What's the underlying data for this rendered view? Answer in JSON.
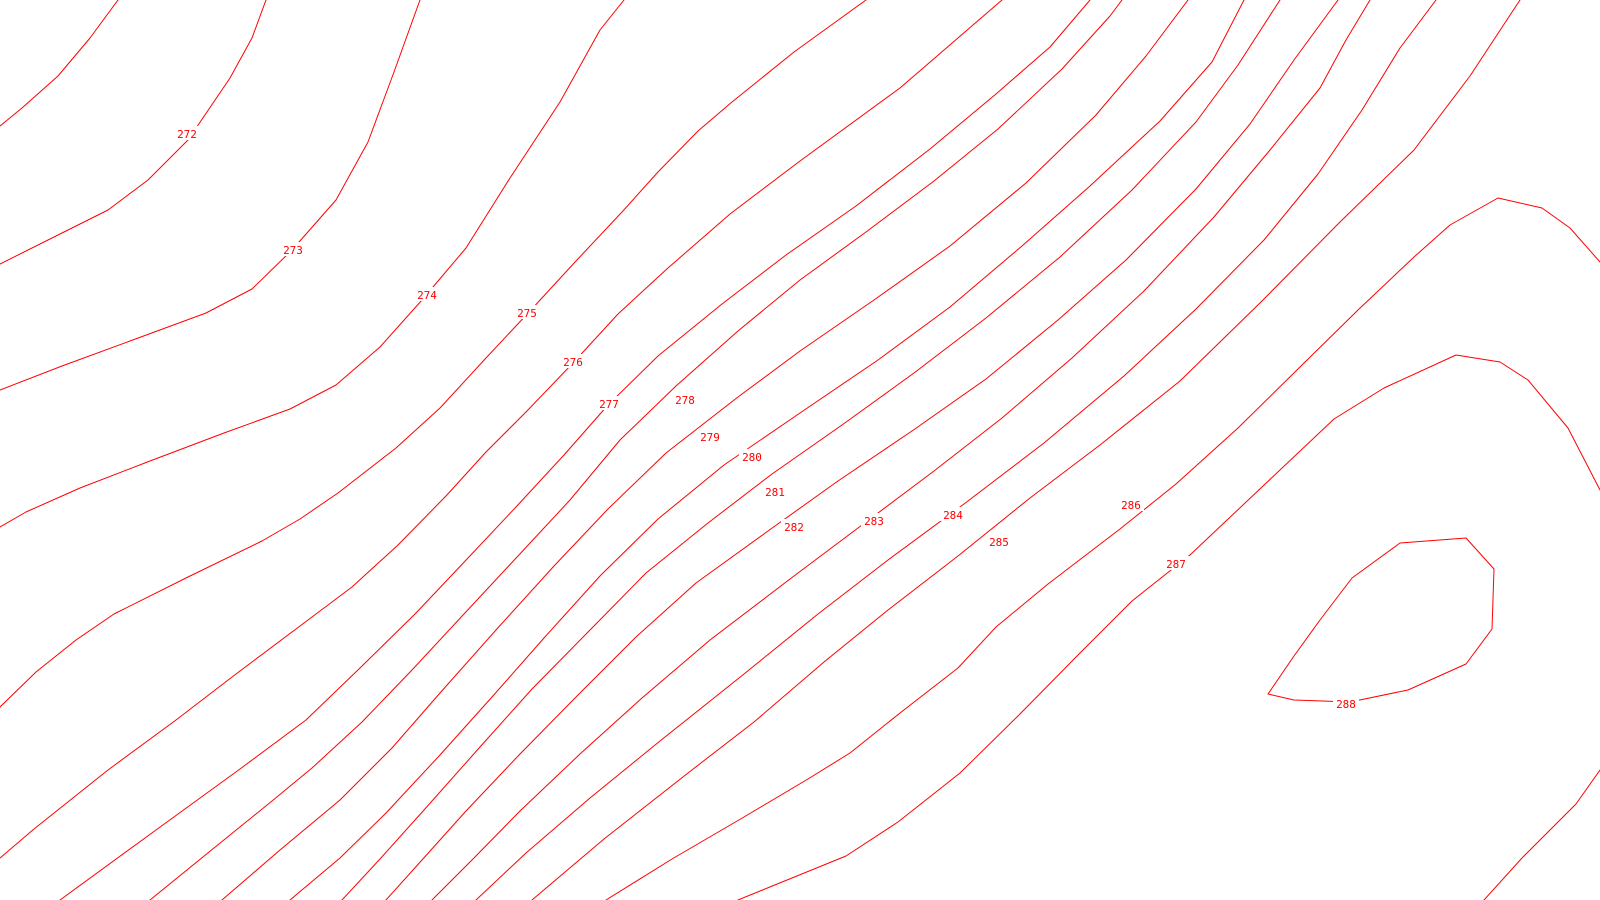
{
  "map": {
    "background_color": "#ffffff",
    "contour_color": "#ff0000",
    "contour_labels": {
      "c272": "272",
      "c273": "273",
      "c274": "274",
      "c275": "275",
      "c276": "276",
      "c277": "277",
      "c278": "278",
      "c279": "279",
      "c280": "280",
      "c281": "281",
      "c282": "282",
      "c283": "283",
      "c284": "284",
      "c285": "285",
      "c286": "286",
      "c287": "287",
      "c288": "288"
    }
  }
}
